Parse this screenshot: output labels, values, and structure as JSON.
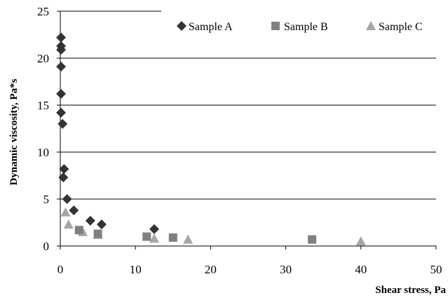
{
  "chart_data": {
    "type": "scatter",
    "xlabel": "Shear stress, Pa",
    "ylabel": "Dynamic viscosity, Pa*s",
    "xlim": [
      0,
      50
    ],
    "ylim": [
      0,
      25
    ],
    "x_ticks": [
      "0",
      "10",
      "20",
      "30",
      "40",
      "50"
    ],
    "y_ticks": [
      "0",
      "5",
      "10",
      "15",
      "20",
      "25"
    ],
    "grid": "horizontal",
    "legend_position": "top-right",
    "series": [
      {
        "name": "Sample A",
        "marker": "diamond",
        "color": "#333333",
        "points": [
          {
            "x": 0.1,
            "y": 22.2
          },
          {
            "x": 0.1,
            "y": 21.3
          },
          {
            "x": 0.1,
            "y": 20.9
          },
          {
            "x": 0.1,
            "y": 19.1
          },
          {
            "x": 0.1,
            "y": 16.2
          },
          {
            "x": 0.1,
            "y": 14.2
          },
          {
            "x": 0.3,
            "y": 13.0
          },
          {
            "x": 0.5,
            "y": 8.2
          },
          {
            "x": 0.4,
            "y": 7.3
          },
          {
            "x": 0.9,
            "y": 5.0
          },
          {
            "x": 1.8,
            "y": 3.8
          },
          {
            "x": 4.0,
            "y": 2.7
          },
          {
            "x": 5.5,
            "y": 2.3
          },
          {
            "x": 12.5,
            "y": 1.8
          }
        ]
      },
      {
        "name": "Sample B",
        "marker": "square",
        "color": "#808080",
        "points": [
          {
            "x": 2.5,
            "y": 1.7
          },
          {
            "x": 5.0,
            "y": 1.3
          },
          {
            "x": 11.5,
            "y": 1.0
          },
          {
            "x": 15.0,
            "y": 0.9
          },
          {
            "x": 33.5,
            "y": 0.7
          }
        ]
      },
      {
        "name": "Sample C",
        "marker": "triangle",
        "color": "#a6a6a6",
        "points": [
          {
            "x": 0.7,
            "y": 3.6
          },
          {
            "x": 1.1,
            "y": 2.3
          },
          {
            "x": 3.0,
            "y": 1.5
          },
          {
            "x": 5.0,
            "y": 1.2
          },
          {
            "x": 12.5,
            "y": 0.8
          },
          {
            "x": 17.0,
            "y": 0.7
          },
          {
            "x": 40.0,
            "y": 0.5
          }
        ]
      }
    ]
  }
}
